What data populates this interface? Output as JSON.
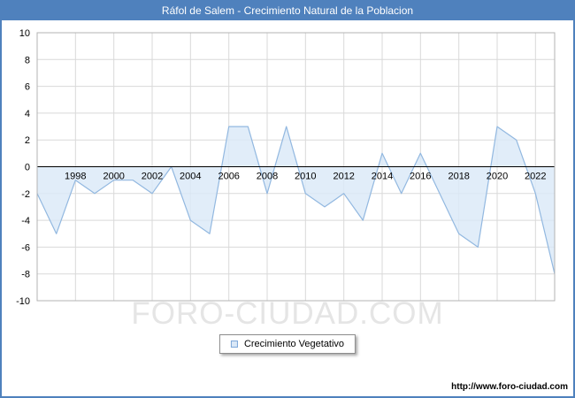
{
  "header": {
    "title": "Ráfol de Salem - Crecimiento Natural de la Poblacion",
    "bg_color": "#4f81bd",
    "text_color": "#ffffff"
  },
  "watermark": {
    "text": "FORO-CIUDAD.COM"
  },
  "legend": {
    "label": "Crecimiento Vegetativo",
    "marker_fill": "#dae8f7",
    "marker_border": "#7da7d9"
  },
  "footer": {
    "url": "http://www.foro-ciudad.com"
  },
  "chart_data": {
    "type": "area",
    "title": "Ráfol de Salem - Crecimiento Natural de la Poblacion",
    "x": [
      1996,
      1997,
      1998,
      1999,
      2000,
      2001,
      2002,
      2003,
      2004,
      2005,
      2006,
      2007,
      2008,
      2009,
      2010,
      2011,
      2012,
      2013,
      2014,
      2015,
      2016,
      2017,
      2018,
      2019,
      2020,
      2021,
      2022,
      2023
    ],
    "series": [
      {
        "name": "Crecimiento Vegetativo",
        "values": [
          -2,
          -5,
          -1,
          -2,
          -1,
          -1,
          -2,
          0,
          -4,
          -5,
          3,
          3,
          -2,
          3,
          -2,
          -3,
          -2,
          -4,
          1,
          -2,
          1,
          -2,
          -5,
          -6,
          3,
          2,
          -2,
          -8
        ]
      }
    ],
    "xlim": [
      1996,
      2023
    ],
    "ylim": [
      -10,
      10
    ],
    "y_ticks": [
      10,
      8,
      6,
      4,
      2,
      0,
      -2,
      -4,
      -6,
      -8,
      -10
    ],
    "x_ticks": [
      1998,
      2000,
      2002,
      2004,
      2006,
      2008,
      2010,
      2012,
      2014,
      2016,
      2018,
      2020,
      2022
    ],
    "grid": true,
    "grid_color": "#d9d9d9",
    "line_color": "#92b8e0",
    "fill_color": "#dae8f7",
    "fill_opacity": 0.8,
    "zero_line_color": "#000000",
    "plot_border_color": "#b3b3b3",
    "tick_label_color": "#000000",
    "legend_position": "bottom-center"
  }
}
